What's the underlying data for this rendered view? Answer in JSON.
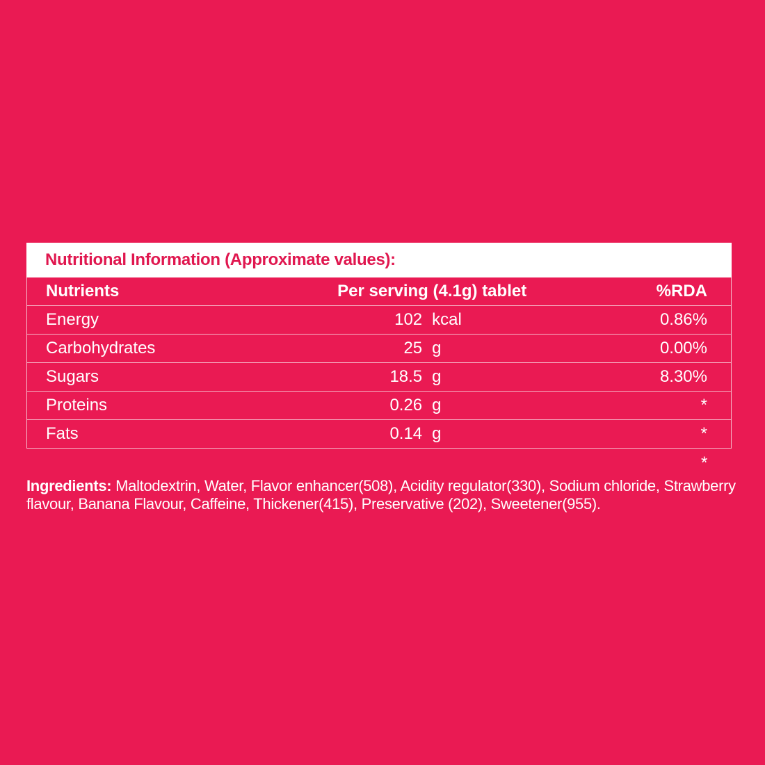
{
  "title": "Nutritional Information (Approximate values):",
  "headers": {
    "nutrients": "Nutrients",
    "per_serving": "Per serving (4.1g) tablet",
    "rda": "%RDA"
  },
  "rows": [
    {
      "name": "Energy",
      "amount": "102",
      "unit": "kcal",
      "rda": "0.86%"
    },
    {
      "name": "Carbohydrates",
      "amount": "25",
      "unit": "g",
      "rda": "0.00%"
    },
    {
      "name": "Sugars",
      "amount": "18.5",
      "unit": "g",
      "rda": "8.30%"
    },
    {
      "name": "Proteins",
      "amount": "0.26",
      "unit": "g",
      "rda": "*"
    },
    {
      "name": "Fats",
      "amount": "0.14",
      "unit": "g",
      "rda": "*"
    }
  ],
  "footnote_mark": "*",
  "ingredients": {
    "label": "Ingredients:",
    "text": " Maltodextrin, Water, Flavor enhancer(508), Acidity regulator(330), Sodium chloride, Strawberry flavour, Banana Flavour, Caffeine, Thickener(415), Preservative (202), Sweetener(955)."
  },
  "colors": {
    "background": "#ea1a53",
    "title_text": "#e0174f",
    "title_bar": "#ffffff",
    "text": "#ffffff"
  }
}
